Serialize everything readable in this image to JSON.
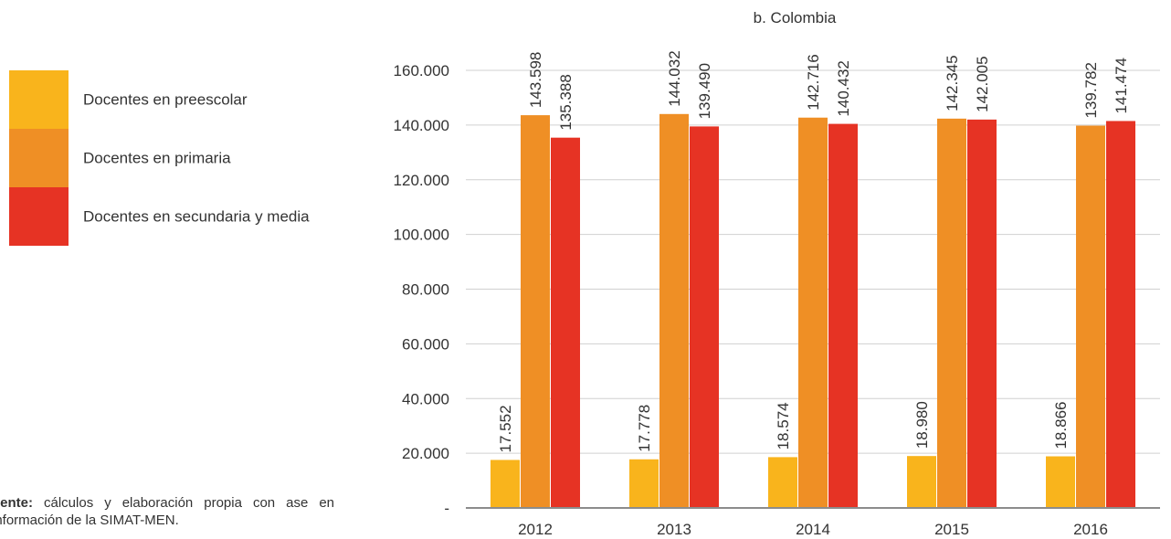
{
  "legend": [
    {
      "label": "Docentes en preescolar",
      "color": "#F9B41C"
    },
    {
      "label": "Docentes en primaria",
      "color": "#EF8F25"
    },
    {
      "label": "Docentes en secundaria y media",
      "color": "#E63324"
    }
  ],
  "source": {
    "bold": "uente:",
    "text": " cálculos y elaboración propia con ase en información de la SIMAT-MEN."
  },
  "chart_data": {
    "type": "bar",
    "title": "b. Colombia",
    "categories": [
      "2012",
      "2013",
      "2014",
      "2015",
      "2016"
    ],
    "series": [
      {
        "name": "Docentes en preescolar",
        "color": "#F9B41C",
        "values": [
          17552,
          17778,
          18574,
          18980,
          18866
        ],
        "labels": [
          "17.552",
          "17.778",
          "18.574",
          "18.980",
          "18.866"
        ]
      },
      {
        "name": "Docentes en primaria",
        "color": "#EF8F25",
        "values": [
          143598,
          144032,
          142716,
          142345,
          139782
        ],
        "labels": [
          "143.598",
          "144.032",
          "142.716",
          "142.345",
          "139.782"
        ]
      },
      {
        "name": "Docentes en secundaria y media",
        "color": "#E63324",
        "values": [
          135388,
          139490,
          140432,
          142005,
          141474
        ],
        "labels": [
          "135.388",
          "139.490",
          "140.432",
          "142.005",
          "141.474"
        ]
      }
    ],
    "ylim": [
      0,
      160000
    ],
    "yticks": [
      0,
      20000,
      40000,
      60000,
      80000,
      100000,
      120000,
      140000,
      160000
    ],
    "ytick_labels": [
      "-",
      "20.000",
      "40.000",
      "60.000",
      "80.000",
      "100.000",
      "120.000",
      "140.000",
      "160.000"
    ],
    "grid": true,
    "legend_position": "left"
  }
}
